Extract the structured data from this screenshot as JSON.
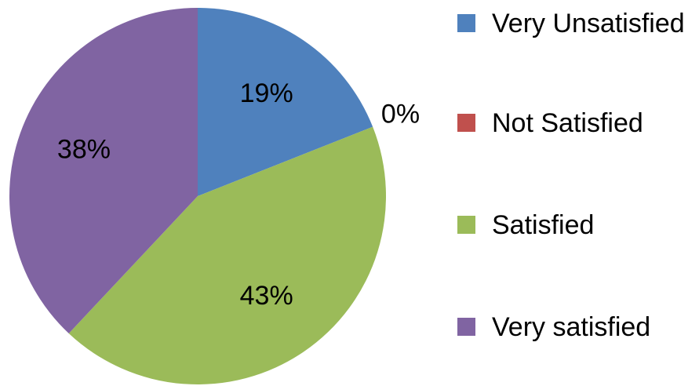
{
  "chart_data": {
    "type": "pie",
    "categories": [
      "Very Unsatisfied",
      "Not Satisfied",
      "Satisfied",
      "Very satisfied"
    ],
    "values": [
      19,
      0,
      43,
      38
    ],
    "value_labels": [
      "19%",
      "0%",
      "43%",
      "38%"
    ],
    "colors": [
      "#4f81bd",
      "#c0504d",
      "#9bbb59",
      "#8064a2"
    ],
    "legend": "right"
  }
}
